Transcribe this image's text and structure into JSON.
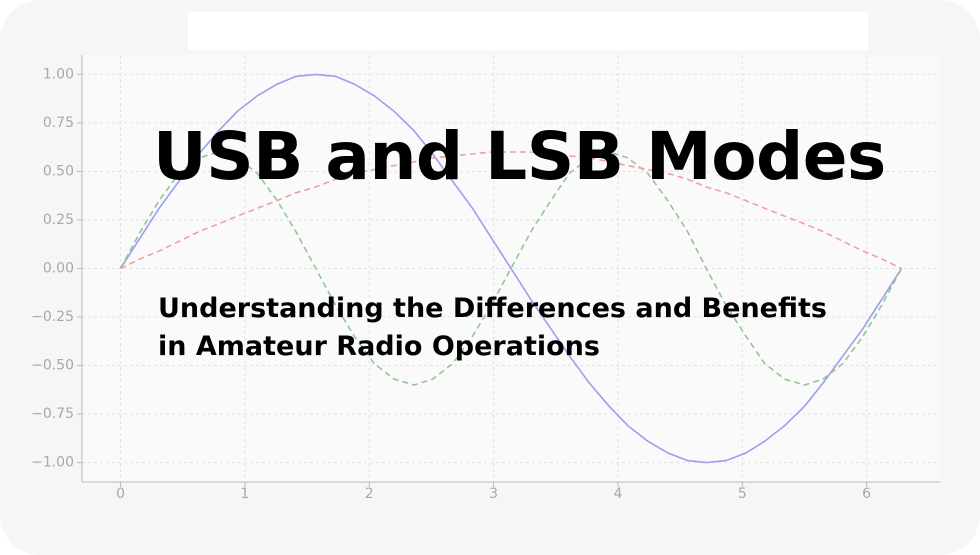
{
  "chart_data": {
    "type": "line",
    "title": "USB and LSB Modes",
    "subtitle": "Understanding the Differences and Benefits in Amateur Radio Operations",
    "x": [
      0,
      0.16,
      0.31,
      0.47,
      0.63,
      0.79,
      0.94,
      1.1,
      1.26,
      1.41,
      1.57,
      1.73,
      1.88,
      2.04,
      2.2,
      2.36,
      2.51,
      2.67,
      2.83,
      2.98,
      3.14,
      3.3,
      3.46,
      3.61,
      3.77,
      3.93,
      4.08,
      4.24,
      4.4,
      4.56,
      4.71,
      4.87,
      5.03,
      5.18,
      5.34,
      5.5,
      5.65,
      5.81,
      5.97,
      6.12,
      6.28
    ],
    "series": [
      {
        "color": "#9d9df0",
        "dash": false,
        "values": [
          0,
          0.16,
          0.31,
          0.45,
          0.59,
          0.71,
          0.81,
          0.89,
          0.95,
          0.99,
          1,
          0.99,
          0.95,
          0.89,
          0.81,
          0.71,
          0.59,
          0.45,
          0.31,
          0.16,
          0,
          -0.16,
          -0.31,
          -0.45,
          -0.59,
          -0.71,
          -0.81,
          -0.89,
          -0.95,
          -0.99,
          -1,
          -0.99,
          -0.95,
          -0.89,
          -0.81,
          -0.71,
          -0.59,
          -0.45,
          -0.31,
          -0.16,
          0
        ]
      },
      {
        "color": "#8fc88f",
        "dash": true,
        "values": [
          0,
          0.19,
          0.35,
          0.49,
          0.57,
          0.6,
          0.57,
          0.49,
          0.35,
          0.19,
          0,
          -0.19,
          -0.35,
          -0.49,
          -0.57,
          -0.6,
          -0.57,
          -0.49,
          -0.35,
          -0.19,
          0,
          0.19,
          0.35,
          0.49,
          0.57,
          0.6,
          0.57,
          0.49,
          0.35,
          0.19,
          0,
          -0.19,
          -0.35,
          -0.49,
          -0.57,
          -0.6,
          -0.57,
          -0.49,
          -0.35,
          -0.19,
          0
        ]
      },
      {
        "color": "#f0a0a0",
        "dash": true,
        "values": [
          0,
          0.05,
          0.09,
          0.14,
          0.19,
          0.23,
          0.27,
          0.31,
          0.35,
          0.39,
          0.42,
          0.46,
          0.49,
          0.51,
          0.53,
          0.55,
          0.57,
          0.58,
          0.59,
          0.6,
          0.6,
          0.6,
          0.59,
          0.58,
          0.57,
          0.55,
          0.53,
          0.51,
          0.49,
          0.46,
          0.42,
          0.39,
          0.35,
          0.31,
          0.27,
          0.23,
          0.19,
          0.14,
          0.09,
          0.05,
          0
        ]
      }
    ],
    "xlim": [
      -0.31,
      6.59
    ],
    "ylim": [
      -1.1,
      1.1
    ],
    "xticks": [
      0,
      1,
      2,
      3,
      4,
      5,
      6
    ],
    "yticks": [
      {
        "value": 1,
        "label": "1.00"
      },
      {
        "value": 0.75,
        "label": "0.75"
      },
      {
        "value": 0.5,
        "label": "0.50"
      },
      {
        "value": 0.25,
        "label": "0.25"
      },
      {
        "value": 0,
        "label": "0.00"
      },
      {
        "value": -0.25,
        "label": "−0.25"
      },
      {
        "value": -0.5,
        "label": "−0.50"
      },
      {
        "value": -0.75,
        "label": "−0.75"
      },
      {
        "value": -1,
        "label": "−1.00"
      }
    ],
    "grid": true
  }
}
